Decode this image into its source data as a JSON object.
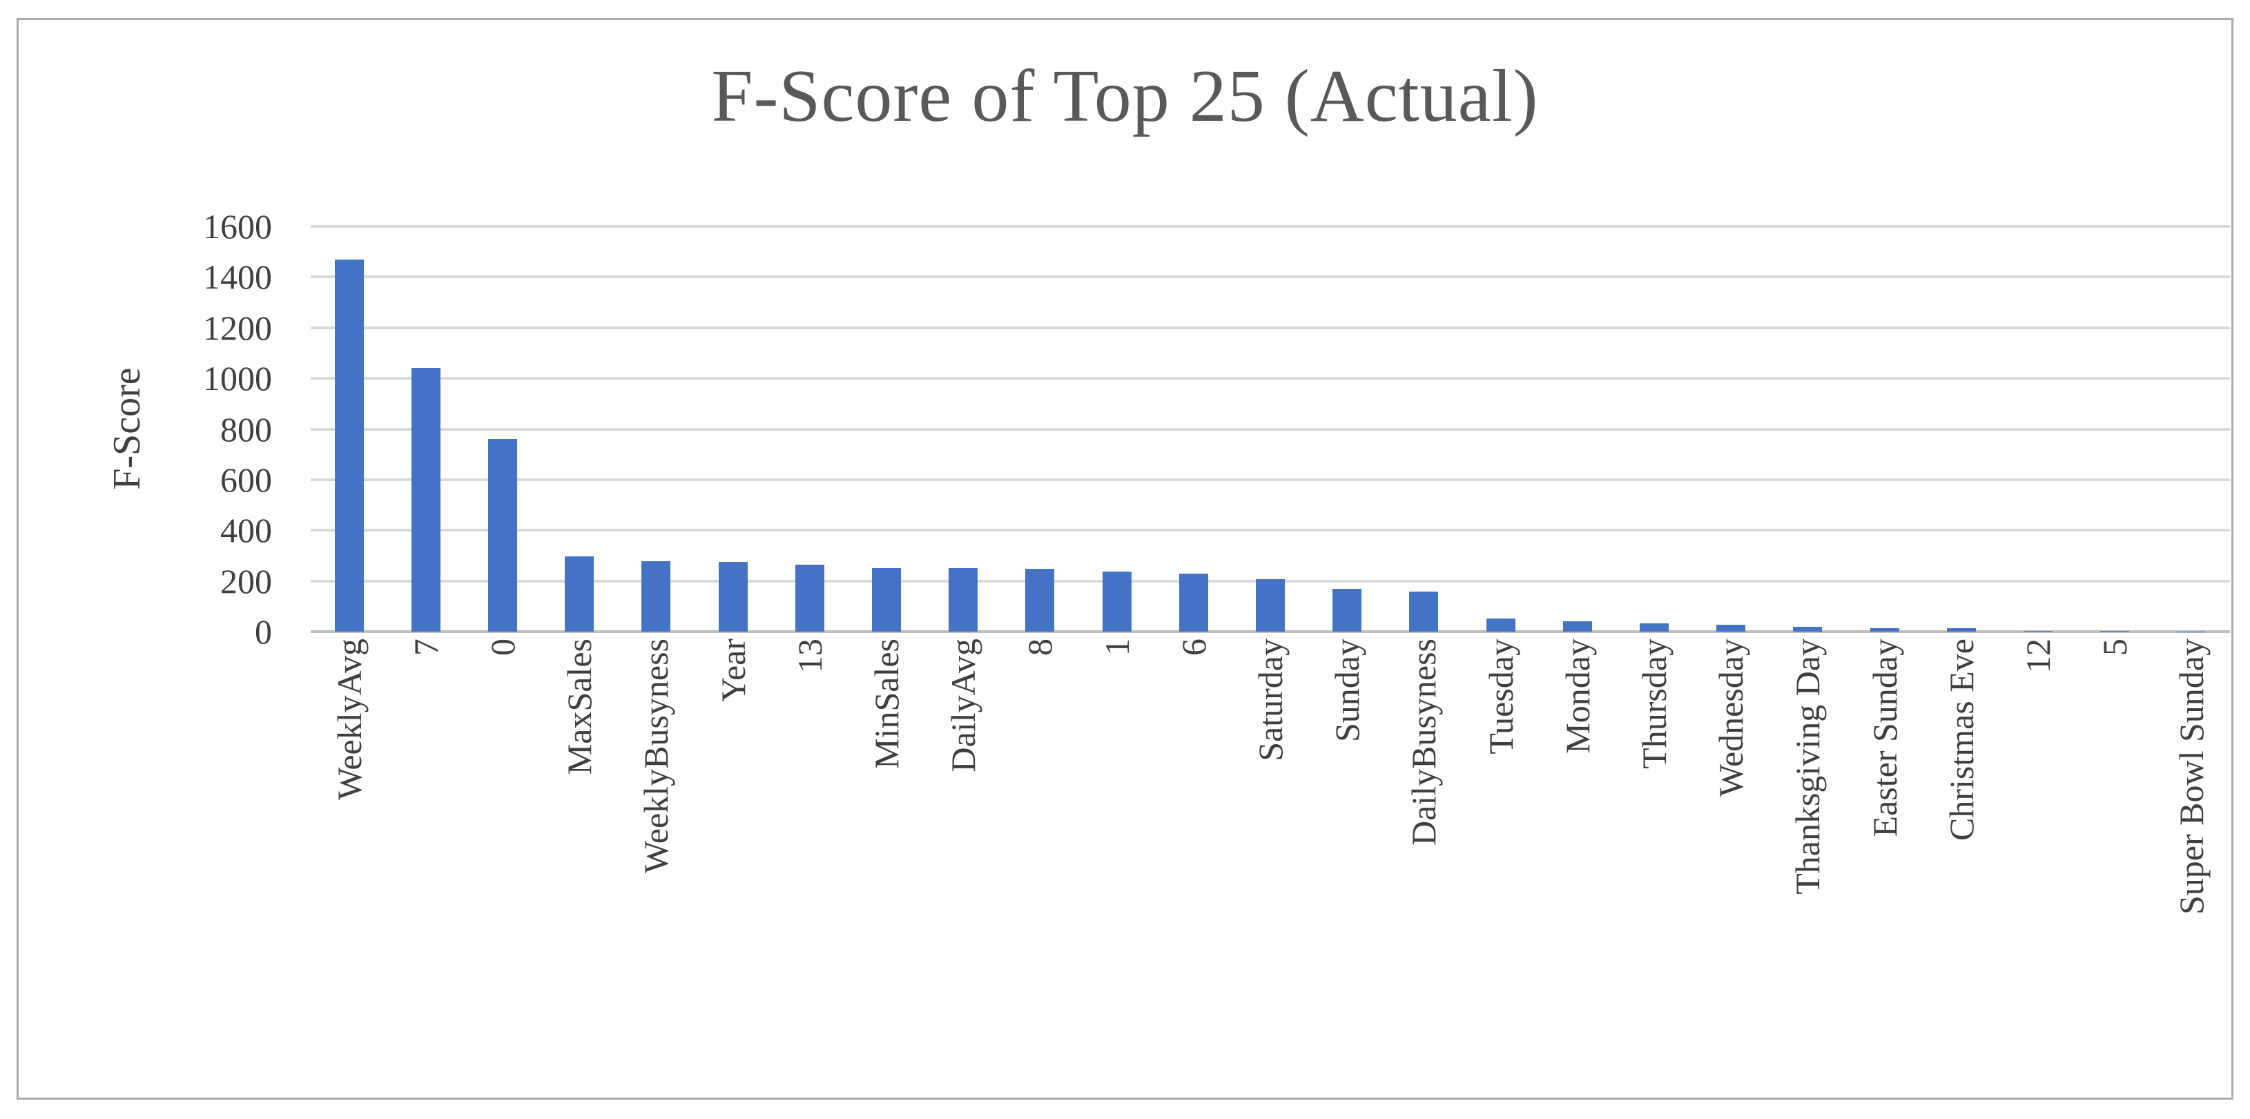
{
  "chart_data": {
    "type": "bar",
    "title": "F-Score of Top 25 (Actual)",
    "xlabel": "",
    "ylabel": "F-Score",
    "ylim": [
      0,
      1600
    ],
    "yticks": [
      0,
      200,
      400,
      600,
      800,
      1000,
      1200,
      1400,
      1600
    ],
    "grid": "horizontal",
    "legend": "none",
    "categories": [
      "WeeklyAvg",
      "7",
      "0",
      "MaxSales",
      "WeeklyBusyness",
      "Year",
      "13",
      "MinSales",
      "DailyAvg",
      "8",
      "1",
      "6",
      "Saturday",
      "Sunday",
      "DailyBusyness",
      "Tuesday",
      "Monday",
      "Thursday",
      "Wednesday",
      "Thanksgiving Day",
      "Easter Sunday",
      "Christmas Eve",
      "12",
      "5",
      "Super Bowl Sunday"
    ],
    "values": [
      1470,
      1040,
      760,
      297,
      278,
      275,
      264,
      252,
      250,
      247,
      238,
      230,
      206,
      168,
      157,
      52,
      42,
      33,
      26,
      18,
      15,
      14,
      3,
      2,
      1
    ]
  },
  "colors": {
    "bar": "#4472c4",
    "gridline": "#d9d9d9",
    "axis_line": "#bfbfbf",
    "label_text": "#3f3f3f",
    "title_text": "#595959",
    "figure_border": "#ababab"
  }
}
